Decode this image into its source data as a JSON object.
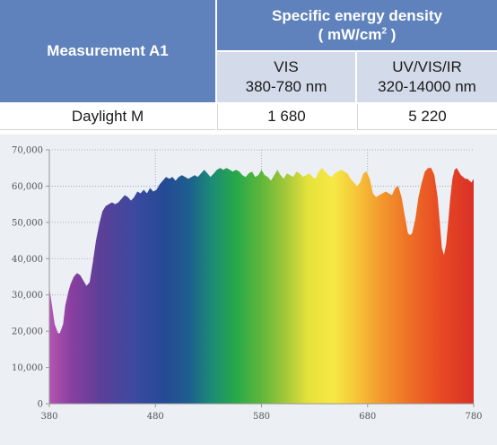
{
  "table": {
    "measurement_header": "Measurement A1",
    "density_header_line1": "Specific energy density",
    "density_header_line2": "( mW/cm",
    "density_header_sup": "2",
    "density_header_end": " )",
    "vis_label": "VIS",
    "vis_range": "380-780 nm",
    "uv_label": "UV/VIS/IR",
    "uv_range": "320-14000 nm",
    "row_label": "Daylight M",
    "row_vis_value": "1 680",
    "row_uv_value": "5 220",
    "colors": {
      "header_blue": "#5f82bd",
      "subheader_light": "#d3dbea"
    }
  },
  "chart_data": {
    "type": "area",
    "title": "",
    "xlabel": "",
    "ylabel": "",
    "xlim": [
      380,
      780
    ],
    "ylim": [
      0,
      70000
    ],
    "x_ticks": [
      "380",
      "480",
      "580",
      "680",
      "780"
    ],
    "y_ticks": [
      "0",
      "10,000",
      "20,000",
      "30,000",
      "40,000",
      "50,000",
      "60,000",
      "70,000"
    ],
    "grid": "dotted",
    "fill": "visible-spectrum gradient",
    "series": [
      {
        "x": [
          380,
          382,
          385,
          388,
          390,
          393,
          395,
          398,
          400,
          403,
          406,
          409,
          412,
          415,
          418,
          421,
          424,
          427,
          430,
          433,
          436,
          439,
          442,
          445,
          448,
          451,
          454,
          457,
          460,
          463,
          466,
          469,
          472,
          475,
          478,
          481,
          484,
          487,
          490,
          493,
          496,
          499,
          502,
          505,
          508,
          511,
          514,
          517,
          520,
          523,
          526,
          529,
          532,
          535,
          538,
          541,
          544,
          547,
          550,
          553,
          556,
          559,
          562,
          565,
          568,
          571,
          574,
          577,
          580,
          583,
          586,
          589,
          592,
          595,
          598,
          601,
          604,
          607,
          610,
          613,
          616,
          619,
          622,
          625,
          628,
          631,
          634,
          637,
          640,
          643,
          646,
          649,
          652,
          655,
          658,
          661,
          664,
          667,
          670,
          673,
          676,
          679,
          682,
          685,
          688,
          691,
          694,
          697,
          700,
          703,
          706,
          709,
          712,
          715,
          718,
          720,
          722,
          725,
          728,
          731,
          734,
          737,
          740,
          743,
          746,
          748,
          750,
          752,
          754,
          756,
          758,
          760,
          762,
          764,
          766,
          768,
          770,
          772,
          774,
          776,
          778,
          780
        ],
        "y": [
          32000,
          28000,
          22000,
          19500,
          19500,
          22000,
          27000,
          31000,
          33000,
          35000,
          36000,
          35500,
          34000,
          32500,
          33500,
          39000,
          45000,
          49500,
          53000,
          54500,
          55000,
          55500,
          55000,
          55500,
          56500,
          57500,
          57000,
          56000,
          57000,
          58500,
          58000,
          59000,
          58000,
          59500,
          58500,
          59000,
          60500,
          61500,
          62500,
          62000,
          62500,
          61500,
          62500,
          63000,
          62500,
          62000,
          62500,
          63000,
          62500,
          63500,
          64500,
          63500,
          62500,
          63500,
          64500,
          65000,
          64500,
          65000,
          64500,
          64000,
          64500,
          64000,
          63000,
          62500,
          63500,
          64000,
          62500,
          63000,
          64500,
          63000,
          62500,
          61500,
          63000,
          64500,
          63000,
          62000,
          63500,
          63000,
          62500,
          64000,
          63500,
          62500,
          63000,
          63500,
          62500,
          62000,
          64000,
          65000,
          64000,
          63000,
          62500,
          63500,
          64000,
          64500,
          64000,
          63500,
          62000,
          61000,
          60000,
          61000,
          63500,
          64000,
          62000,
          58000,
          57000,
          57500,
          58000,
          58500,
          58000,
          57500,
          59500,
          60000,
          57000,
          52000,
          47000,
          46500,
          47000,
          51000,
          57000,
          61000,
          64000,
          65000,
          65000,
          63000,
          57000,
          50000,
          43000,
          41000,
          44000,
          50000,
          57000,
          62000,
          64500,
          65000,
          64000,
          63000,
          62500,
          62000,
          62000,
          61500,
          61000,
          62000
        ]
      }
    ],
    "colors": {
      "background": "#eceff3",
      "axis": "#999999"
    }
  }
}
